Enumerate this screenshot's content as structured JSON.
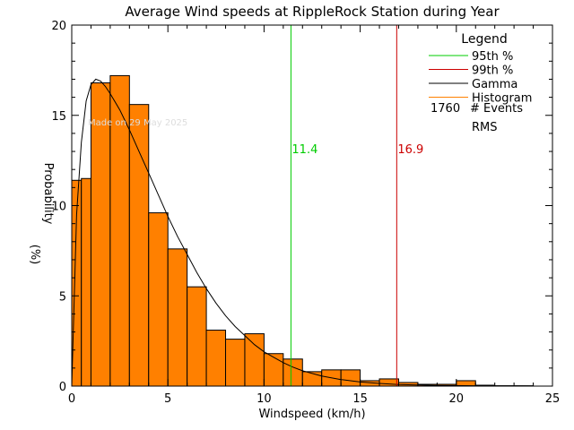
{
  "chart_data": {
    "type": "bar",
    "title": "Average Wind speeds at RippleRock Station during Year",
    "xlabel": "Windspeed (km/h)",
    "ylabel_line1": "Probability",
    "ylabel_line2": "(%)",
    "xlim": [
      0,
      25
    ],
    "ylim": [
      0,
      20
    ],
    "x_ticks": [
      0,
      5,
      10,
      15,
      20,
      25
    ],
    "y_ticks": [
      0,
      5,
      10,
      15,
      20
    ],
    "grid": false,
    "legend_position": "top-right",
    "watermark": "Made on 29 May 2025",
    "histogram": {
      "name": "Histogram",
      "color": "#FF8000",
      "bin_width": 1,
      "bins": [
        {
          "x0": 0.0,
          "x1": 0.5,
          "value": 11.4
        },
        {
          "x0": 0.5,
          "x1": 1.0,
          "value": 11.5
        },
        {
          "x0": 1.0,
          "x1": 2.0,
          "value": 16.8
        },
        {
          "x0": 2.0,
          "x1": 3.0,
          "value": 17.2
        },
        {
          "x0": 3.0,
          "x1": 4.0,
          "value": 15.6
        },
        {
          "x0": 4.0,
          "x1": 5.0,
          "value": 9.6
        },
        {
          "x0": 5.0,
          "x1": 6.0,
          "value": 7.6
        },
        {
          "x0": 6.0,
          "x1": 7.0,
          "value": 5.5
        },
        {
          "x0": 7.0,
          "x1": 8.0,
          "value": 3.1
        },
        {
          "x0": 8.0,
          "x1": 9.0,
          "value": 2.6
        },
        {
          "x0": 9.0,
          "x1": 10.0,
          "value": 2.9
        },
        {
          "x0": 10.0,
          "x1": 11.0,
          "value": 1.8
        },
        {
          "x0": 11.0,
          "x1": 12.0,
          "value": 1.5
        },
        {
          "x0": 12.0,
          "x1": 13.0,
          "value": 0.8
        },
        {
          "x0": 13.0,
          "x1": 14.0,
          "value": 0.9
        },
        {
          "x0": 14.0,
          "x1": 15.0,
          "value": 0.9
        },
        {
          "x0": 15.0,
          "x1": 16.0,
          "value": 0.3
        },
        {
          "x0": 16.0,
          "x1": 17.0,
          "value": 0.4
        },
        {
          "x0": 17.0,
          "x1": 18.0,
          "value": 0.2
        },
        {
          "x0": 18.0,
          "x1": 19.0,
          "value": 0.1
        },
        {
          "x0": 19.0,
          "x1": 20.0,
          "value": 0.1
        },
        {
          "x0": 20.0,
          "x1": 21.0,
          "value": 0.3
        },
        {
          "x0": 21.0,
          "x1": 22.0,
          "value": 0.05
        },
        {
          "x0": 22.0,
          "x1": 23.0,
          "value": 0.02
        },
        {
          "x0": 23.0,
          "x1": 24.0,
          "value": 0.02
        }
      ]
    },
    "gamma_curve": {
      "name": "Gamma",
      "color": "#000000",
      "x": [
        0.0,
        0.25,
        0.5,
        0.75,
        1.0,
        1.25,
        1.5,
        1.75,
        2.0,
        2.5,
        3.0,
        3.5,
        4.0,
        4.5,
        5.0,
        5.5,
        6.0,
        6.5,
        7.0,
        7.5,
        8.0,
        8.5,
        9.0,
        9.5,
        10.0,
        10.5,
        11.0,
        11.5,
        12.0,
        13.0,
        14.0,
        15.0,
        16.0,
        17.0,
        18.0,
        19.0,
        20.0,
        21.0,
        22.0,
        23.0,
        24.0,
        24.5
      ],
      "y": [
        0.0,
        9.5,
        13.5,
        15.8,
        16.7,
        17.0,
        16.9,
        16.6,
        16.2,
        15.3,
        14.2,
        13.0,
        11.8,
        10.6,
        9.4,
        8.3,
        7.3,
        6.3,
        5.4,
        4.6,
        3.9,
        3.3,
        2.8,
        2.3,
        1.9,
        1.6,
        1.3,
        1.05,
        0.85,
        0.56,
        0.36,
        0.23,
        0.15,
        0.09,
        0.06,
        0.04,
        0.03,
        0.02,
        0.01,
        0.01,
        0.0,
        0.0
      ]
    },
    "percentiles": [
      {
        "name": "95th %",
        "value": 11.4,
        "label": "11.4",
        "color": "#00CC00"
      },
      {
        "name": "99th %",
        "value": 16.9,
        "label": "16.9",
        "color": "#CC0000"
      }
    ],
    "legend": {
      "title": "Legend",
      "entries": [
        {
          "label": "95th %",
          "color": "#00CC00"
        },
        {
          "label": "99th %",
          "color": "#CC0000"
        },
        {
          "label": "Gamma",
          "color": "#000000"
        },
        {
          "label": "Histogram",
          "color": "#FF8000"
        }
      ],
      "events_count": "1760",
      "events_label": "# Events",
      "rms_label": "RMS"
    }
  }
}
